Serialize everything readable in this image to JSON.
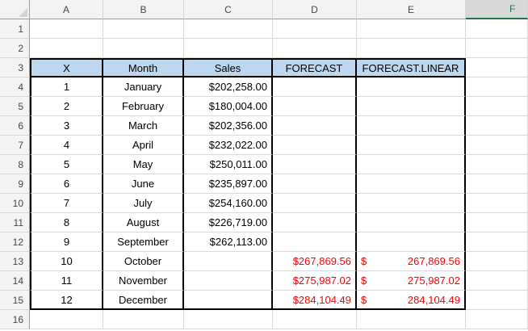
{
  "sheet": {
    "column_letters": [
      "A",
      "B",
      "C",
      "D",
      "E",
      "F"
    ],
    "row_numbers": [
      "1",
      "2",
      "3",
      "4",
      "5",
      "6",
      "7",
      "8",
      "9",
      "10",
      "11",
      "12",
      "13",
      "14",
      "15",
      "16"
    ],
    "selected_column": "F"
  },
  "table": {
    "headers": {
      "x": "X",
      "month": "Month",
      "sales": "Sales",
      "forecast": "FORECAST",
      "forecast_linear": "FORECAST.LINEAR"
    },
    "rows": [
      {
        "x": "1",
        "month": "January",
        "sales": "$202,258.00",
        "forecast": "",
        "linear_sym": "",
        "linear_val": ""
      },
      {
        "x": "2",
        "month": "February",
        "sales": "$180,004.00",
        "forecast": "",
        "linear_sym": "",
        "linear_val": ""
      },
      {
        "x": "3",
        "month": "March",
        "sales": "$202,356.00",
        "forecast": "",
        "linear_sym": "",
        "linear_val": ""
      },
      {
        "x": "4",
        "month": "April",
        "sales": "$232,022.00",
        "forecast": "",
        "linear_sym": "",
        "linear_val": ""
      },
      {
        "x": "5",
        "month": "May",
        "sales": "$250,011.00",
        "forecast": "",
        "linear_sym": "",
        "linear_val": ""
      },
      {
        "x": "6",
        "month": "June",
        "sales": "$235,897.00",
        "forecast": "",
        "linear_sym": "",
        "linear_val": ""
      },
      {
        "x": "7",
        "month": "July",
        "sales": "$254,160.00",
        "forecast": "",
        "linear_sym": "",
        "linear_val": ""
      },
      {
        "x": "8",
        "month": "August",
        "sales": "$226,719.00",
        "forecast": "",
        "linear_sym": "",
        "linear_val": ""
      },
      {
        "x": "9",
        "month": "September",
        "sales": "$262,113.00",
        "forecast": "",
        "linear_sym": "",
        "linear_val": ""
      },
      {
        "x": "10",
        "month": "October",
        "sales": "",
        "forecast": "$267,869.56",
        "linear_sym": "$",
        "linear_val": "267,869.56"
      },
      {
        "x": "11",
        "month": "November",
        "sales": "",
        "forecast": "$275,987.02",
        "linear_sym": "$",
        "linear_val": "275,987.02"
      },
      {
        "x": "12",
        "month": "December",
        "sales": "",
        "forecast": "$284,104.49",
        "linear_sym": "$",
        "linear_val": "284,104.49"
      }
    ]
  },
  "colors": {
    "table_header_fill": "#BDD7EE",
    "forecast_red": "#FF0000",
    "selection_green": "#217346",
    "gridline": "#D9D9D9",
    "table_border": "#000000"
  }
}
